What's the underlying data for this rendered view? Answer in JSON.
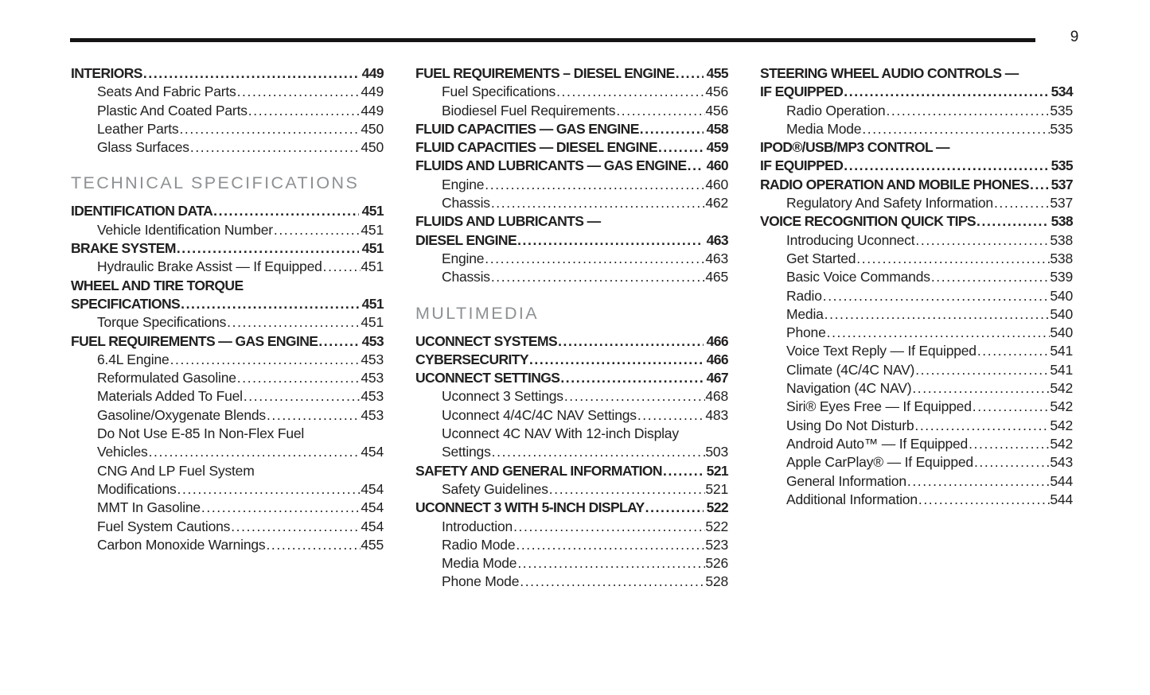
{
  "page_number": "9",
  "columns": [
    {
      "items": [
        {
          "type": "entry",
          "bold": true,
          "indent": false,
          "text": "INTERIORS",
          "page": "449"
        },
        {
          "type": "entry",
          "bold": false,
          "indent": true,
          "text": "Seats And Fabric Parts",
          "page": "449"
        },
        {
          "type": "entry",
          "bold": false,
          "indent": true,
          "text": "Plastic And Coated Parts",
          "page": "449"
        },
        {
          "type": "entry",
          "bold": false,
          "indent": true,
          "text": "Leather Parts",
          "page": "450"
        },
        {
          "type": "entry",
          "bold": false,
          "indent": true,
          "text": "Glass Surfaces",
          "page": "450"
        },
        {
          "type": "section",
          "text": "TECHNICAL SPECIFICATIONS"
        },
        {
          "type": "entry",
          "bold": true,
          "indent": false,
          "text": "IDENTIFICATION DATA",
          "page": "451"
        },
        {
          "type": "entry",
          "bold": false,
          "indent": true,
          "text": "Vehicle Identification Number",
          "page": "451"
        },
        {
          "type": "entry",
          "bold": true,
          "indent": false,
          "text": "BRAKE SYSTEM",
          "page": "451"
        },
        {
          "type": "entry",
          "bold": false,
          "indent": true,
          "text": "Hydraulic Brake Assist — If Equipped",
          "page": "451"
        },
        {
          "type": "entry",
          "bold": true,
          "indent": false,
          "text": "WHEEL AND TIRE TORQUE",
          "text2": "SPECIFICATIONS",
          "page": "451"
        },
        {
          "type": "entry",
          "bold": false,
          "indent": true,
          "text": "Torque Specifications",
          "page": "451"
        },
        {
          "type": "entry",
          "bold": true,
          "indent": false,
          "text": "FUEL REQUIREMENTS — GAS ENGINE",
          "page": "453"
        },
        {
          "type": "entry",
          "bold": false,
          "indent": true,
          "text": "6.4L Engine",
          "page": "453"
        },
        {
          "type": "entry",
          "bold": false,
          "indent": true,
          "text": "Reformulated Gasoline",
          "page": "453"
        },
        {
          "type": "entry",
          "bold": false,
          "indent": true,
          "text": "Materials Added To Fuel",
          "page": "453"
        },
        {
          "type": "entry",
          "bold": false,
          "indent": true,
          "text": "Gasoline/Oxygenate Blends",
          "page": "453"
        },
        {
          "type": "entry",
          "bold": false,
          "indent": true,
          "text": "Do Not Use E-85 In Non-Flex Fuel",
          "text2": "Vehicles",
          "page": "454"
        },
        {
          "type": "entry",
          "bold": false,
          "indent": true,
          "text": "CNG And LP Fuel System",
          "text2": "Modifications",
          "page": "454"
        },
        {
          "type": "entry",
          "bold": false,
          "indent": true,
          "text": "MMT In Gasoline",
          "page": "454"
        },
        {
          "type": "entry",
          "bold": false,
          "indent": true,
          "text": "Fuel System Cautions",
          "page": "454"
        },
        {
          "type": "entry",
          "bold": false,
          "indent": true,
          "text": "Carbon Monoxide Warnings",
          "page": "455"
        }
      ]
    },
    {
      "items": [
        {
          "type": "entry",
          "bold": true,
          "indent": false,
          "text": "FUEL REQUIREMENTS – DIESEL ENGINE",
          "page": "455"
        },
        {
          "type": "entry",
          "bold": false,
          "indent": true,
          "text": "Fuel Specifications",
          "page": "456"
        },
        {
          "type": "entry",
          "bold": false,
          "indent": true,
          "text": "Biodiesel Fuel Requirements",
          "page": "456"
        },
        {
          "type": "entry",
          "bold": true,
          "indent": false,
          "text": "FLUID CAPACITIES — GAS ENGINE",
          "page": "458"
        },
        {
          "type": "entry",
          "bold": true,
          "indent": false,
          "text": "FLUID CAPACITIES — DIESEL ENGINE",
          "page": "459"
        },
        {
          "type": "entry",
          "bold": true,
          "indent": false,
          "text": "FLUIDS AND LUBRICANTS — GAS ENGINE",
          "page": "460"
        },
        {
          "type": "entry",
          "bold": false,
          "indent": true,
          "text": "Engine",
          "page": "460"
        },
        {
          "type": "entry",
          "bold": false,
          "indent": true,
          "text": "Chassis",
          "page": "462"
        },
        {
          "type": "entry",
          "bold": true,
          "indent": false,
          "text": "FLUIDS AND LUBRICANTS —",
          "text2": "DIESEL ENGINE",
          "page": "463"
        },
        {
          "type": "entry",
          "bold": false,
          "indent": true,
          "text": "Engine",
          "page": "463"
        },
        {
          "type": "entry",
          "bold": false,
          "indent": true,
          "text": "Chassis",
          "page": "465"
        },
        {
          "type": "section",
          "text": "MULTIMEDIA"
        },
        {
          "type": "entry",
          "bold": true,
          "indent": false,
          "text": "UCONNECT SYSTEMS",
          "page": "466"
        },
        {
          "type": "entry",
          "bold": true,
          "indent": false,
          "text": "CYBERSECURITY",
          "page": "466"
        },
        {
          "type": "entry",
          "bold": true,
          "indent": false,
          "text": "UCONNECT SETTINGS",
          "page": "467"
        },
        {
          "type": "entry",
          "bold": false,
          "indent": true,
          "text": "Uconnect 3 Settings",
          "page": "468"
        },
        {
          "type": "entry",
          "bold": false,
          "indent": true,
          "text": "Uconnect 4/4C/4C NAV Settings",
          "page": "483"
        },
        {
          "type": "entry",
          "bold": false,
          "indent": true,
          "text": "Uconnect 4C NAV With 12-inch Display",
          "text2": "Settings",
          "page": "503"
        },
        {
          "type": "entry",
          "bold": true,
          "indent": false,
          "text": "SAFETY AND GENERAL INFORMATION",
          "page": "521"
        },
        {
          "type": "entry",
          "bold": false,
          "indent": true,
          "text": "Safety Guidelines",
          "page": "521"
        },
        {
          "type": "entry",
          "bold": true,
          "indent": false,
          "text": "UCONNECT 3 WITH 5-INCH DISPLAY",
          "page": "522"
        },
        {
          "type": "entry",
          "bold": false,
          "indent": true,
          "text": "Introduction",
          "page": "522"
        },
        {
          "type": "entry",
          "bold": false,
          "indent": true,
          "text": "Radio Mode",
          "page": "523"
        },
        {
          "type": "entry",
          "bold": false,
          "indent": true,
          "text": "Media Mode",
          "page": "526"
        },
        {
          "type": "entry",
          "bold": false,
          "indent": true,
          "text": "Phone Mode",
          "page": "528"
        }
      ]
    },
    {
      "items": [
        {
          "type": "entry",
          "bold": true,
          "indent": false,
          "text": "STEERING WHEEL AUDIO CONTROLS —",
          "text2": "IF EQUIPPED",
          "page": "534"
        },
        {
          "type": "entry",
          "bold": false,
          "indent": true,
          "text": "Radio Operation",
          "page": "535"
        },
        {
          "type": "entry",
          "bold": false,
          "indent": true,
          "text": "Media Mode",
          "page": "535"
        },
        {
          "type": "entry",
          "bold": true,
          "indent": false,
          "text": "IPOD®/USB/MP3 CONTROL —",
          "text2": "IF EQUIPPED",
          "page": "535"
        },
        {
          "type": "entry",
          "bold": true,
          "indent": false,
          "text": "RADIO OPERATION AND MOBILE PHONES",
          "page": "537"
        },
        {
          "type": "entry",
          "bold": false,
          "indent": true,
          "text": "Regulatory And Safety Information",
          "page": "537"
        },
        {
          "type": "entry",
          "bold": true,
          "indent": false,
          "text": "VOICE RECOGNITION QUICK TIPS",
          "page": "538"
        },
        {
          "type": "entry",
          "bold": false,
          "indent": true,
          "text": "Introducing Uconnect",
          "page": "538"
        },
        {
          "type": "entry",
          "bold": false,
          "indent": true,
          "text": "Get Started",
          "page": "538"
        },
        {
          "type": "entry",
          "bold": false,
          "indent": true,
          "text": "Basic Voice Commands",
          "page": "539"
        },
        {
          "type": "entry",
          "bold": false,
          "indent": true,
          "text": "Radio",
          "page": "540"
        },
        {
          "type": "entry",
          "bold": false,
          "indent": true,
          "text": "Media",
          "page": "540"
        },
        {
          "type": "entry",
          "bold": false,
          "indent": true,
          "text": "Phone",
          "page": "540"
        },
        {
          "type": "entry",
          "bold": false,
          "indent": true,
          "text": "Voice Text Reply — If Equipped",
          "page": "541"
        },
        {
          "type": "entry",
          "bold": false,
          "indent": true,
          "text": "Climate (4C/4C NAV)",
          "page": "541"
        },
        {
          "type": "entry",
          "bold": false,
          "indent": true,
          "text": "Navigation (4C NAV)",
          "page": "542"
        },
        {
          "type": "entry",
          "bold": false,
          "indent": true,
          "text": "Siri® Eyes Free — If Equipped",
          "page": "542"
        },
        {
          "type": "entry",
          "bold": false,
          "indent": true,
          "text": "Using Do Not Disturb",
          "page": "542"
        },
        {
          "type": "entry",
          "bold": false,
          "indent": true,
          "text": "Android Auto™ — If Equipped",
          "page": "542"
        },
        {
          "type": "entry",
          "bold": false,
          "indent": true,
          "text": "Apple CarPlay® — If Equipped",
          "page": "543"
        },
        {
          "type": "entry",
          "bold": false,
          "indent": true,
          "text": "General Information",
          "page": "544"
        },
        {
          "type": "entry",
          "bold": false,
          "indent": true,
          "text": "Additional Information",
          "page": "544"
        }
      ]
    }
  ]
}
